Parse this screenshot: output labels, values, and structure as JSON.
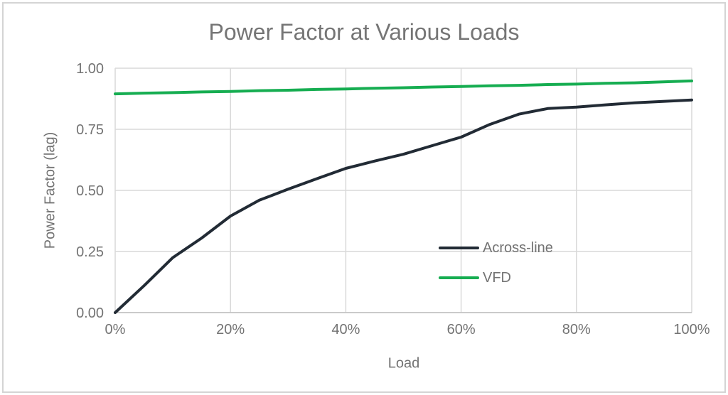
{
  "window": {
    "title": "Power Factor at Various Loads"
  },
  "colors": {
    "background": "#ffffff",
    "frame_border": "#d4d4d4",
    "gridline": "#d9d9d9",
    "axis_line": "#bfbfbf",
    "text": "#737373",
    "title_text": "#757575",
    "across_line": "#222b35",
    "vfd": "#16ad51"
  },
  "chart_data": {
    "type": "line",
    "title": "Power Factor at Various Loads",
    "xlabel": "Load",
    "ylabel": "Power Factor (lag)",
    "xlim": [
      0,
      100
    ],
    "ylim": [
      0,
      1
    ],
    "grid": true,
    "legend_position": "inside-right",
    "x_ticks": [
      "0%",
      "20%",
      "40%",
      "60%",
      "80%",
      "100%"
    ],
    "x_tick_values": [
      0,
      20,
      40,
      60,
      80,
      100
    ],
    "y_ticks": [
      "0.00",
      "0.25",
      "0.50",
      "0.75",
      "1.00"
    ],
    "y_tick_values": [
      0,
      0.25,
      0.5,
      0.75,
      1
    ],
    "x": [
      0,
      5,
      10,
      15,
      20,
      25,
      30,
      35,
      40,
      45,
      50,
      55,
      60,
      65,
      70,
      75,
      80,
      85,
      90,
      95,
      100
    ],
    "series": [
      {
        "id": "across-line",
        "name": "Across-line",
        "color": "#222b35",
        "values": [
          0.0,
          0.11,
          0.225,
          0.305,
          0.395,
          0.46,
          0.505,
          0.548,
          0.59,
          0.62,
          0.648,
          0.683,
          0.718,
          0.77,
          0.812,
          0.835,
          0.841,
          0.85,
          0.858,
          0.864,
          0.87
        ]
      },
      {
        "id": "vfd",
        "name": "VFD",
        "color": "#16ad51",
        "values": [
          0.895,
          0.898,
          0.9,
          0.903,
          0.905,
          0.908,
          0.91,
          0.913,
          0.915,
          0.918,
          0.92,
          0.923,
          0.925,
          0.928,
          0.93,
          0.933,
          0.935,
          0.938,
          0.94,
          0.944,
          0.948
        ]
      }
    ]
  }
}
